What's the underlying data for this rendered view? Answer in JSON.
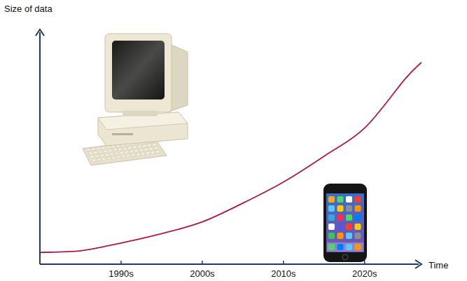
{
  "chart_data": {
    "type": "line",
    "y_label": "Size of data",
    "x_label": "Time",
    "x": [
      1980,
      1985,
      1990,
      1995,
      2000,
      2005,
      2010,
      2015,
      2020,
      2025,
      2027
    ],
    "values": [
      5,
      5.7,
      9,
      13,
      18,
      26,
      35,
      46,
      58,
      79,
      86
    ],
    "color": "#b0174a",
    "xlim": [
      1980,
      2027
    ],
    "xticks": [
      {
        "value": 1990,
        "label": "1990s"
      },
      {
        "value": 2000,
        "label": "2000s"
      },
      {
        "value": 2010,
        "label": "2010s"
      },
      {
        "value": 2020,
        "label": "2020s"
      }
    ],
    "ylim": [
      0,
      100
    ],
    "tick_labels": "x"
  }
}
